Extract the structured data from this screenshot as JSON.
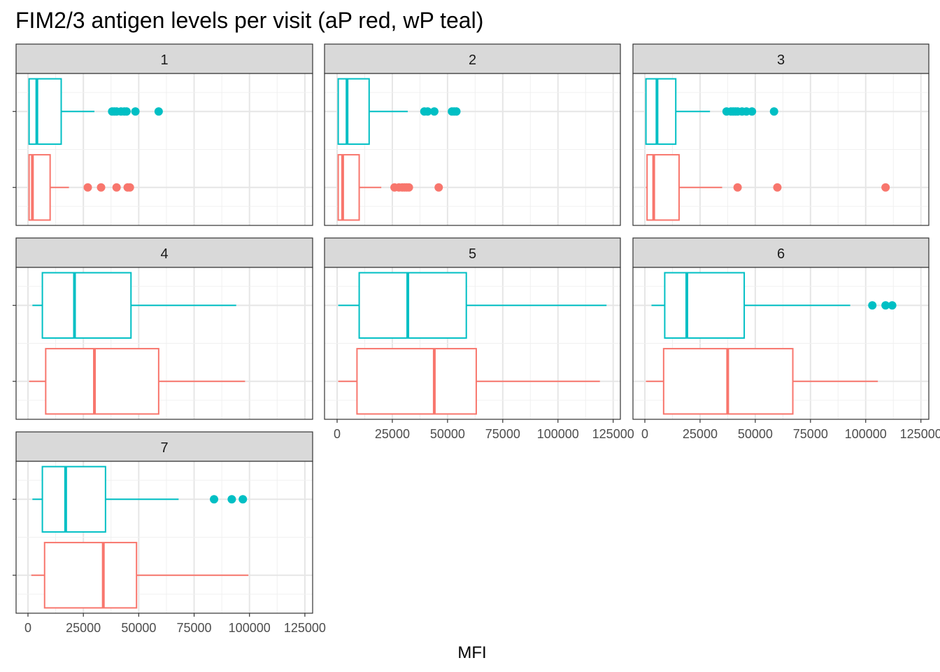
{
  "chart_data": {
    "type": "boxplot",
    "title": "FIM2/3 antigen levels per visit (aP red, wP teal)",
    "xlabel": "MFI",
    "ylabel": "",
    "xlim": [
      0,
      125000
    ],
    "xticks": [
      0,
      25000,
      50000,
      75000,
      100000,
      125000
    ],
    "x_tick_labels": [
      "0",
      "25000",
      "50000",
      "75000",
      "100000",
      "125000"
    ],
    "grid": true,
    "legend": "none",
    "series_colors": {
      "aP": "#F8766D",
      "wP": "#00BFC4"
    },
    "facets": [
      {
        "label": "1",
        "groups": [
          {
            "name": "wP",
            "whisker_low": 500,
            "q1": 500,
            "median": 4000,
            "q3": 15000,
            "whisker_high": 30000,
            "outliers": [
              38000,
              39000,
              40000,
              42000,
              43500,
              44500,
              48500,
              59000
            ]
          },
          {
            "name": "aP",
            "whisker_low": 500,
            "q1": 500,
            "median": 2000,
            "q3": 10000,
            "whisker_high": 18500,
            "outliers": [
              27000,
              33000,
              40000,
              45000,
              46000
            ]
          }
        ]
      },
      {
        "label": "2",
        "groups": [
          {
            "name": "wP",
            "whisker_low": 500,
            "q1": 500,
            "median": 4500,
            "q3": 14500,
            "whisker_high": 32000,
            "outliers": [
              39500,
              41000,
              44000,
              52000,
              53000,
              54000
            ]
          },
          {
            "name": "aP",
            "whisker_low": 500,
            "q1": 500,
            "median": 2500,
            "q3": 10000,
            "whisker_high": 20000,
            "outliers": [
              26000,
              28000,
              29500,
              30500,
              31500,
              32500,
              46000
            ]
          }
        ]
      },
      {
        "label": "3",
        "groups": [
          {
            "name": "wP",
            "whisker_low": 500,
            "q1": 500,
            "median": 5500,
            "q3": 14000,
            "whisker_high": 29500,
            "outliers": [
              37000,
              39000,
              40000,
              41000,
              42000,
              44000,
              46000,
              48500,
              58500
            ]
          },
          {
            "name": "aP",
            "whisker_low": 500,
            "q1": 1000,
            "median": 4000,
            "q3": 15500,
            "whisker_high": 35000,
            "outliers": [
              42000,
              60000,
              109000
            ]
          }
        ]
      },
      {
        "label": "4",
        "groups": [
          {
            "name": "wP",
            "whisker_low": 2000,
            "q1": 6500,
            "median": 21000,
            "q3": 46500,
            "whisker_high": 94000,
            "outliers": []
          },
          {
            "name": "aP",
            "whisker_low": 500,
            "q1": 8000,
            "median": 30000,
            "q3": 59000,
            "whisker_high": 98000,
            "outliers": []
          }
        ]
      },
      {
        "label": "5",
        "groups": [
          {
            "name": "wP",
            "whisker_low": 500,
            "q1": 10000,
            "median": 32000,
            "q3": 58500,
            "whisker_high": 122000,
            "outliers": []
          },
          {
            "name": "aP",
            "whisker_low": 500,
            "q1": 9000,
            "median": 44000,
            "q3": 63000,
            "whisker_high": 119000,
            "outliers": []
          }
        ]
      },
      {
        "label": "6",
        "groups": [
          {
            "name": "wP",
            "whisker_low": 3000,
            "q1": 9000,
            "median": 19000,
            "q3": 45000,
            "whisker_high": 93000,
            "outliers": [
              103000,
              109000,
              112000
            ]
          },
          {
            "name": "aP",
            "whisker_low": 500,
            "q1": 8500,
            "median": 37500,
            "q3": 67000,
            "whisker_high": 105500,
            "outliers": []
          }
        ]
      },
      {
        "label": "7",
        "groups": [
          {
            "name": "wP",
            "whisker_low": 2000,
            "q1": 6500,
            "median": 17000,
            "q3": 35000,
            "whisker_high": 68000,
            "outliers": [
              84000,
              92000,
              97000
            ]
          },
          {
            "name": "aP",
            "whisker_low": 1500,
            "q1": 7500,
            "median": 34000,
            "q3": 49000,
            "whisker_high": 99500,
            "outliers": []
          }
        ]
      }
    ]
  }
}
